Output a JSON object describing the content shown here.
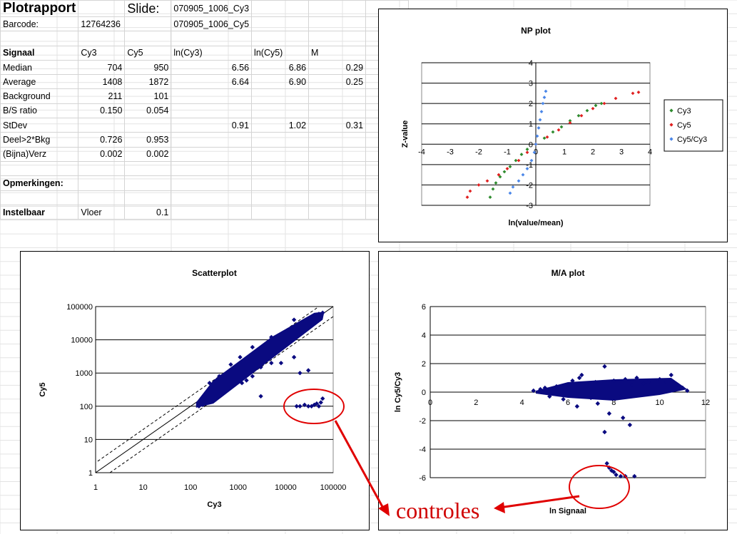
{
  "sheet": {
    "rows": [
      [
        "Plotrapport",
        "",
        "Slide:",
        "070905_1006_Cy3",
        "",
        "",
        ""
      ],
      [
        "Barcode:",
        "12764236",
        "",
        "070905_1006_Cy5",
        "",
        "",
        ""
      ],
      [
        "",
        "",
        "",
        "",
        "",
        "",
        ""
      ],
      [
        "Signaal",
        "Cy3",
        "Cy5",
        "ln(Cy3)",
        "ln(Cy5)",
        "M",
        ""
      ],
      [
        "Median",
        "704",
        "950",
        "6.56",
        "6.86",
        "0.29",
        ""
      ],
      [
        "Average",
        "1408",
        "1872",
        "6.64",
        "6.90",
        "0.25",
        ""
      ],
      [
        "Background",
        "211",
        "101",
        "",
        "",
        "",
        ""
      ],
      [
        "B/S ratio",
        "0.150",
        "0.054",
        "",
        "",
        "",
        ""
      ],
      [
        "StDev",
        "",
        "",
        "0.91",
        "1.02",
        "0.31",
        ""
      ],
      [
        "Deel>2*Bkg",
        "0.726",
        "0.953",
        "",
        "",
        "",
        ""
      ],
      [
        "(Bijna)Verz",
        "0.002",
        "0.002",
        "",
        "",
        "",
        ""
      ],
      [
        "",
        "",
        "",
        "",
        "",
        "",
        ""
      ],
      [
        "Opmerkingen:",
        "",
        "",
        "",
        "",
        "",
        ""
      ],
      [
        "",
        "",
        "",
        "",
        "",
        "",
        ""
      ],
      [
        "Instelbaar",
        "Vloer",
        "0.1",
        "",
        "",
        "",
        ""
      ]
    ]
  },
  "annotation": {
    "label": "controles"
  },
  "chart_data": [
    {
      "type": "scatter",
      "title": "NP plot",
      "xlabel": "ln(value/mean)",
      "ylabel": "Z-value",
      "xlim": [
        -4,
        4
      ],
      "ylim": [
        -3,
        4
      ],
      "xticks": [
        "-4",
        "-3",
        "-2",
        "-1",
        "0",
        "1",
        "2",
        "3",
        "4"
      ],
      "yticks": [
        "-3",
        "-2",
        "-1",
        "0",
        "1",
        "2",
        "3",
        "4"
      ],
      "legend_position": "right",
      "series": [
        {
          "name": "Cy3",
          "color": "#2e8b2e",
          "points": [
            [
              -1.6,
              -2.6
            ],
            [
              -1.5,
              -2.2
            ],
            [
              -1.4,
              -1.9
            ],
            [
              -1.25,
              -1.6
            ],
            [
              -1.1,
              -1.35
            ],
            [
              -0.9,
              -1.1
            ],
            [
              -0.7,
              -0.8
            ],
            [
              -0.5,
              -0.5
            ],
            [
              -0.3,
              -0.25
            ],
            [
              0,
              0
            ],
            [
              0.3,
              0.3
            ],
            [
              0.6,
              0.6
            ],
            [
              0.9,
              0.85
            ],
            [
              1.2,
              1.15
            ],
            [
              1.5,
              1.4
            ],
            [
              1.8,
              1.65
            ],
            [
              2.1,
              1.9
            ],
            [
              2.3,
              2.0
            ]
          ]
        },
        {
          "name": "Cy5",
          "color": "#e02020",
          "points": [
            [
              -2.4,
              -2.6
            ],
            [
              -2.3,
              -2.3
            ],
            [
              -2.0,
              -2.0
            ],
            [
              -1.7,
              -1.8
            ],
            [
              -1.3,
              -1.5
            ],
            [
              -1.0,
              -1.2
            ],
            [
              -0.6,
              -0.8
            ],
            [
              -0.3,
              -0.4
            ],
            [
              0,
              0
            ],
            [
              0.4,
              0.35
            ],
            [
              0.8,
              0.7
            ],
            [
              1.2,
              1.05
            ],
            [
              1.6,
              1.4
            ],
            [
              2.0,
              1.75
            ],
            [
              2.4,
              2.0
            ],
            [
              2.8,
              2.25
            ],
            [
              3.4,
              2.5
            ],
            [
              3.6,
              2.55
            ]
          ]
        },
        {
          "name": "Cy5/Cy3",
          "color": "#4a86e8",
          "points": [
            [
              -0.9,
              -2.4
            ],
            [
              -0.8,
              -2.1
            ],
            [
              -0.6,
              -1.8
            ],
            [
              -0.45,
              -1.5
            ],
            [
              -0.3,
              -1.2
            ],
            [
              -0.15,
              -0.8
            ],
            [
              -0.05,
              -0.4
            ],
            [
              0,
              0
            ],
            [
              0.05,
              0.4
            ],
            [
              0.1,
              0.8
            ],
            [
              0.15,
              1.2
            ],
            [
              0.2,
              1.6
            ],
            [
              0.25,
              2.0
            ],
            [
              0.3,
              2.3
            ],
            [
              0.35,
              2.6
            ]
          ]
        }
      ]
    },
    {
      "type": "scatter",
      "title": "Scatterplot",
      "xlabel": "Cy3",
      "ylabel": "Cy5",
      "xscale": "log",
      "yscale": "log",
      "xlim": [
        1,
        100000
      ],
      "ylim": [
        1,
        100000
      ],
      "xticks": [
        "1",
        "10",
        "100",
        "1000",
        "10000",
        "100000"
      ],
      "yticks": [
        "1",
        "10",
        "100",
        "1000",
        "10000",
        "100000"
      ],
      "color": "#0a0a80",
      "points": [
        [
          150,
          100
        ],
        [
          180,
          110
        ],
        [
          200,
          120
        ],
        [
          220,
          180
        ],
        [
          250,
          250
        ],
        [
          300,
          300
        ],
        [
          350,
          400
        ],
        [
          400,
          500
        ],
        [
          500,
          600
        ],
        [
          600,
          800
        ],
        [
          700,
          900
        ],
        [
          800,
          1200
        ],
        [
          1000,
          1500
        ],
        [
          1200,
          1600
        ],
        [
          1500,
          2000
        ],
        [
          2000,
          2500
        ],
        [
          2500,
          3500
        ],
        [
          3000,
          4000
        ],
        [
          4000,
          5000
        ],
        [
          5000,
          6000
        ],
        [
          6000,
          8000
        ],
        [
          8000,
          10000
        ],
        [
          10000,
          15000
        ],
        [
          15000,
          20000
        ],
        [
          20000,
          25000
        ],
        [
          30000,
          35000
        ],
        [
          40000,
          50000
        ],
        [
          50000,
          60000
        ],
        [
          60000,
          65000
        ],
        [
          3000,
          1500
        ],
        [
          5000,
          2000
        ],
        [
          2000,
          800
        ],
        [
          1500,
          600
        ],
        [
          1200,
          500
        ],
        [
          250,
          500
        ],
        [
          400,
          800
        ],
        [
          700,
          1800
        ],
        [
          1100,
          3000
        ],
        [
          2000,
          6000
        ],
        [
          5000,
          12000
        ],
        [
          15000,
          40000
        ],
        [
          20000,
          1000
        ],
        [
          30000,
          1200
        ],
        [
          8000,
          2000
        ],
        [
          15000,
          3000
        ],
        [
          17000,
          100
        ],
        [
          20000,
          100
        ],
        [
          25000,
          110
        ],
        [
          30000,
          100
        ],
        [
          35000,
          100
        ],
        [
          40000,
          110
        ],
        [
          45000,
          120
        ],
        [
          50000,
          100
        ],
        [
          55000,
          130
        ],
        [
          60000,
          170
        ],
        [
          3000,
          200
        ]
      ],
      "reference_lines": [
        "y = x",
        "y = 2x",
        "y = 0.5x"
      ]
    },
    {
      "type": "scatter",
      "title": "M/A plot",
      "xlabel": "ln Signaal",
      "ylabel": "ln Cy5/Cy3",
      "xlim": [
        0,
        12
      ],
      "ylim": [
        -6,
        6
      ],
      "xticks": [
        "0",
        "2",
        "4",
        "6",
        "8",
        "10",
        "12"
      ],
      "yticks": [
        "-6",
        "-4",
        "-2",
        "0",
        "2",
        "4",
        "6"
      ],
      "color": "#0a0a80",
      "points": [
        [
          4.5,
          0.1
        ],
        [
          4.8,
          0.2
        ],
        [
          5.0,
          0.3
        ],
        [
          5.2,
          -0.3
        ],
        [
          5.5,
          0.4
        ],
        [
          5.8,
          -0.5
        ],
        [
          6.0,
          0.5
        ],
        [
          6.2,
          0.8
        ],
        [
          6.4,
          -1.0
        ],
        [
          6.6,
          1.2
        ],
        [
          6.8,
          0.6
        ],
        [
          7.0,
          -0.4
        ],
        [
          7.2,
          0.7
        ],
        [
          7.5,
          0.3
        ],
        [
          7.6,
          1.8
        ],
        [
          7.8,
          -1.5
        ],
        [
          8.0,
          0.8
        ],
        [
          8.3,
          -0.3
        ],
        [
          8.5,
          0.9
        ],
        [
          8.8,
          0.5
        ],
        [
          9.0,
          1.0
        ],
        [
          9.3,
          0.6
        ],
        [
          9.5,
          0.7
        ],
        [
          9.8,
          0.8
        ],
        [
          10.0,
          0.9
        ],
        [
          10.3,
          0.7
        ],
        [
          10.5,
          1.2
        ],
        [
          10.8,
          0.5
        ],
        [
          11.0,
          0.3
        ],
        [
          11.2,
          0.1
        ],
        [
          7.6,
          -2.8
        ],
        [
          8.4,
          -1.8
        ],
        [
          8.7,
          -2.3
        ],
        [
          6.5,
          1.0
        ],
        [
          7.3,
          -0.8
        ],
        [
          9.1,
          -0.2
        ],
        [
          7.7,
          -5.0
        ],
        [
          7.8,
          -5.3
        ],
        [
          7.9,
          -5.5
        ],
        [
          8.0,
          -5.6
        ],
        [
          8.1,
          -5.8
        ],
        [
          8.3,
          -5.9
        ],
        [
          8.5,
          -5.9
        ],
        [
          8.9,
          -5.9
        ]
      ]
    }
  ]
}
